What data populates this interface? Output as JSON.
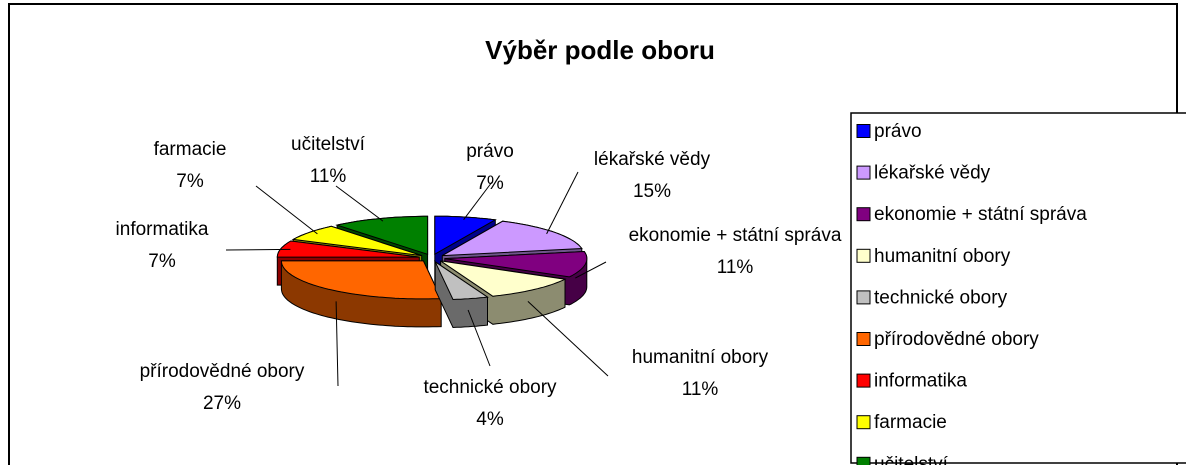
{
  "chart_data": {
    "type": "pie3d",
    "title": "Výběr podle oboru",
    "categories": [
      "právo",
      "lékařské vědy",
      "ekonomie + státní správa",
      "humanitní obory",
      "technické obory",
      "přírodovědné obory",
      "informatika",
      "farmacie",
      "učitelství"
    ],
    "values": [
      7,
      15,
      11,
      11,
      4,
      27,
      7,
      7,
      11
    ],
    "value_labels": [
      "7%",
      "15%",
      "11%",
      "11%",
      "4%",
      "27%",
      "7%",
      "7%",
      "11%"
    ],
    "colors": [
      "#0000ff",
      "#cc99ff",
      "#800080",
      "#ffffcc",
      "#c0c0c0",
      "#ff6600",
      "#ff0000",
      "#ffff00",
      "#008000"
    ],
    "legend": "right"
  }
}
